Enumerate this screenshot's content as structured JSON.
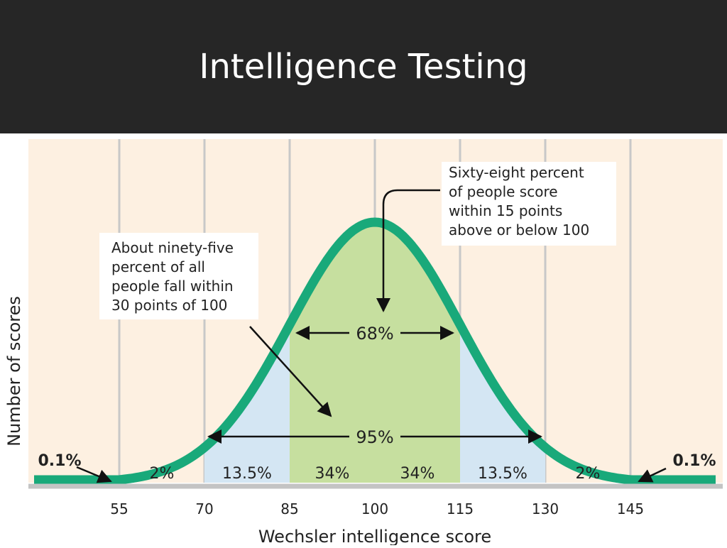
{
  "slide": {
    "title": "Intelligence Testing"
  },
  "colors": {
    "header_bg": "#262626",
    "plot_bg": "#fdf0e1",
    "curve": "#19a97a",
    "within_one_sd_fill": "#c6df9f",
    "one_to_two_sd_fill": "#d4e6f3",
    "grid_line": "#c8c8c8",
    "baseline": "#c4c4c4"
  },
  "chart_data": {
    "type": "area",
    "distribution": "normal",
    "mean": 100,
    "sd": 15,
    "x_ticks": [
      55,
      70,
      85,
      100,
      115,
      130,
      145
    ],
    "xlim": [
      40,
      160
    ],
    "xlabel": "Wechsler intelligence score",
    "ylabel": "Number of scores",
    "grid": true,
    "band_labels": [
      {
        "from": 55,
        "to": 70,
        "label": "2%"
      },
      {
        "from": 70,
        "to": 85,
        "label": "13.5%"
      },
      {
        "from": 85,
        "to": 100,
        "label": "34%"
      },
      {
        "from": 100,
        "to": 115,
        "label": "34%"
      },
      {
        "from": 115,
        "to": 130,
        "label": "13.5%"
      },
      {
        "from": 130,
        "to": 145,
        "label": "2%"
      }
    ],
    "tail_labels": {
      "left": "0.1%",
      "right": "0.1%"
    },
    "spans": [
      {
        "from": 85,
        "to": 115,
        "label": "68%"
      },
      {
        "from": 70,
        "to": 130,
        "label": "95%"
      }
    ],
    "callouts": {
      "sixty_eight": [
        "Sixty-eight percent",
        "of people score",
        "within 15 points",
        "above or below 100"
      ],
      "ninety_five": [
        "About ninety-five",
        "percent of all",
        "people fall within",
        "30 points of 100"
      ]
    }
  }
}
